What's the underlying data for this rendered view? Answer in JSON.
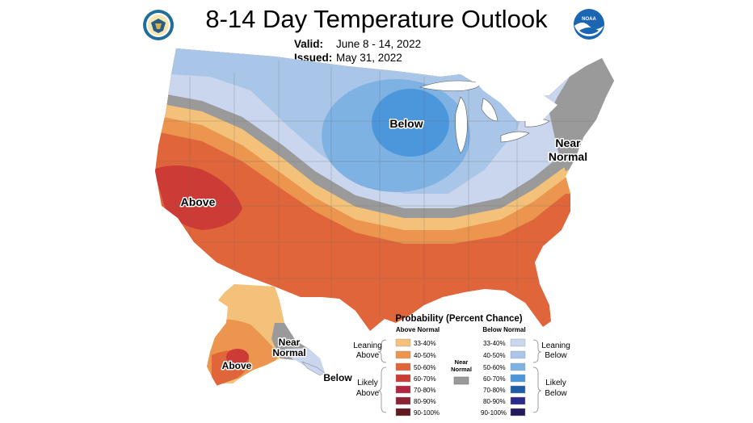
{
  "header": {
    "title": "8-14 Day Temperature Outlook",
    "valid_label": "Valid:",
    "valid_value": "June 8 - 14, 2022",
    "issued_label": "Issued:",
    "issued_value": "May 31, 2022",
    "left_logo": "doc-seal-icon",
    "right_logo": "noaa-logo-icon",
    "right_logo_text": "NOAA"
  },
  "map": {
    "labels": {
      "below_main": "Below",
      "near_normal_ne_1": "Near",
      "near_normal_ne_2": "Normal",
      "above_main": "Above",
      "alaska_near_1": "Near",
      "alaska_near_2": "Normal",
      "alaska_above": "Above",
      "alaska_below": "Below"
    },
    "colors": {
      "above_33_40": "#f3c17a",
      "above_40_50": "#eb954e",
      "above_50_60": "#e0653a",
      "above_60_70": "#cc3b36",
      "above_70_80": "#b12741",
      "above_80_90": "#8c2335",
      "above_90_100": "#5e1a1f",
      "below_33_40": "#c9d6ee",
      "below_40_50": "#a9c6e8",
      "below_50_60": "#7db2e3",
      "below_60_70": "#4c97dc",
      "below_70_80": "#1e5ea8",
      "below_80_90": "#2b2a8c",
      "below_90_100": "#23195c",
      "near_normal": "#9a9a9a"
    }
  },
  "legend": {
    "title": "Probability (Percent Chance)",
    "above_header": "Above Normal",
    "below_header": "Below Normal",
    "leaning_above_1": "Leaning",
    "leaning_above_2": "Above",
    "likely_above_1": "Likely",
    "likely_above_2": "Above",
    "leaning_below_1": "Leaning",
    "leaning_below_2": "Below",
    "likely_below_1": "Likely",
    "likely_below_2": "Below",
    "near_1": "Near",
    "near_2": "Normal",
    "above_ranges": [
      "33-40%",
      "40-50%",
      "50-60%",
      "60-70%",
      "70-80%",
      "80-90%",
      "90-100%"
    ],
    "below_ranges": [
      "33-40%",
      "40-50%",
      "50-60%",
      "60-70%",
      "70-80%",
      "80-90%",
      "90-100%"
    ]
  }
}
